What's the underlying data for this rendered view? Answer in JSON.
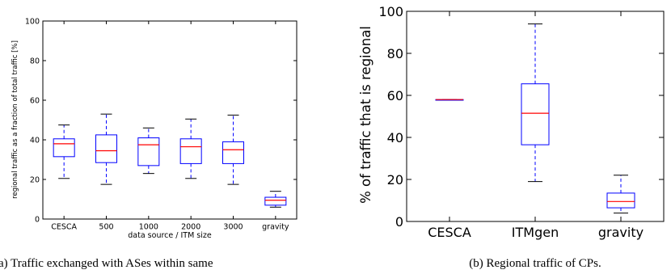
{
  "chart_data": [
    {
      "type": "box",
      "xlabel": "data source / ITM size",
      "ylabel": "regional traffic as a fraction of total traffic [%]",
      "ylim": [
        0,
        100
      ],
      "yticks": [
        "0",
        "20",
        "40",
        "60",
        "80",
        "100"
      ],
      "categories": [
        "CESCA",
        "500",
        "1000",
        "2000",
        "3000",
        "gravity"
      ],
      "boxes": [
        {
          "whisker_low": 20.5,
          "q1": 31.5,
          "median": 38,
          "q3": 40.5,
          "whisker_high": 47.5
        },
        {
          "whisker_low": 17.5,
          "q1": 28.5,
          "median": 34.5,
          "q3": 42.5,
          "whisker_high": 53
        },
        {
          "whisker_low": 23,
          "q1": 27,
          "median": 37.5,
          "q3": 41,
          "whisker_high": 46
        },
        {
          "whisker_low": 20.5,
          "q1": 28,
          "median": 36.5,
          "q3": 40.5,
          "whisker_high": 50.5
        },
        {
          "whisker_low": 17.5,
          "q1": 28,
          "median": 35,
          "q3": 39,
          "whisker_high": 52.5
        },
        {
          "whisker_low": 6,
          "q1": 7,
          "median": 9.5,
          "q3": 11,
          "whisker_high": 14
        }
      ],
      "caption": "(a) Traffic exchanged with ASes within same"
    },
    {
      "type": "box",
      "xlabel": "",
      "ylabel": "% of traffic that is regional",
      "ylim": [
        0,
        100
      ],
      "yticks": [
        "0",
        "20",
        "40",
        "60",
        "80",
        "100"
      ],
      "categories": [
        "CESCA",
        "ITMgen",
        "gravity"
      ],
      "boxes": [
        {
          "whisker_low": 58,
          "q1": 58,
          "median": 58,
          "q3": 58,
          "whisker_high": 58
        },
        {
          "whisker_low": 19,
          "q1": 36.5,
          "median": 51.5,
          "q3": 65.5,
          "whisker_high": 94
        },
        {
          "whisker_low": 4,
          "q1": 6.5,
          "median": 9.5,
          "q3": 13.5,
          "whisker_high": 22
        }
      ],
      "caption": "(b) Regional traffic of CPs."
    }
  ],
  "colors": {
    "box": "#0000ff",
    "median": "#ff0000",
    "whisker_cap": "#000000",
    "axis": "#000000"
  }
}
